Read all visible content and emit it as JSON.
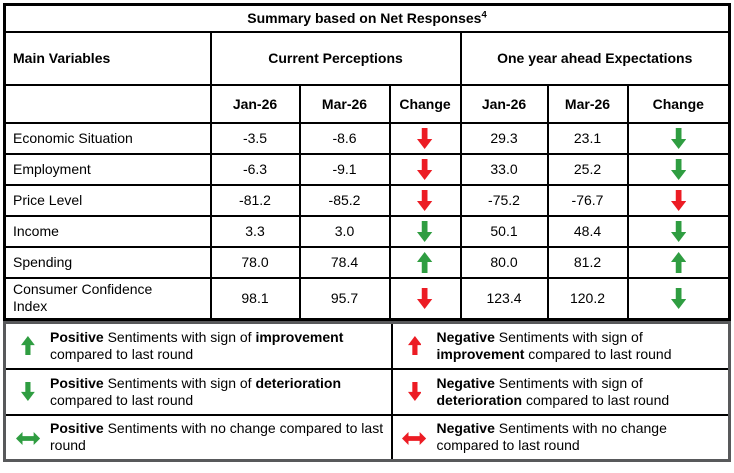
{
  "title": {
    "text": "Summary based on Net Responses",
    "superscript": "4"
  },
  "header": {
    "main_variables": "Main Variables",
    "current_perceptions": "Current Perceptions",
    "one_year_ahead": "One year ahead Expectations",
    "subcolumns": [
      "Jan-26",
      "Mar-26",
      "Change",
      "Jan-26",
      "Mar-26",
      "Change"
    ]
  },
  "rows": [
    {
      "label": "Economic Situation",
      "cp": {
        "jan": "-3.5",
        "mar": "-8.6",
        "change": "red-down"
      },
      "exp": {
        "jan": "29.3",
        "mar": "23.1",
        "change": "green-down"
      }
    },
    {
      "label": "Employment",
      "cp": {
        "jan": "-6.3",
        "mar": "-9.1",
        "change": "red-down"
      },
      "exp": {
        "jan": "33.0",
        "mar": "25.2",
        "change": "green-down"
      }
    },
    {
      "label": "Price Level",
      "cp": {
        "jan": "-81.2",
        "mar": "-85.2",
        "change": "red-down"
      },
      "exp": {
        "jan": "-75.2",
        "mar": "-76.7",
        "change": "red-down"
      }
    },
    {
      "label": "Income",
      "cp": {
        "jan": "3.3",
        "mar": "3.0",
        "change": "green-down"
      },
      "exp": {
        "jan": "50.1",
        "mar": "48.4",
        "change": "green-down"
      }
    },
    {
      "label": "Spending",
      "cp": {
        "jan": "78.0",
        "mar": "78.4",
        "change": "green-up"
      },
      "exp": {
        "jan": "80.0",
        "mar": "81.2",
        "change": "green-up"
      }
    },
    {
      "label": "Consumer Confidence Index",
      "cp": {
        "jan": "98.1",
        "mar": "95.7",
        "change": "red-down"
      },
      "exp": {
        "jan": "123.4",
        "mar": "120.2",
        "change": "green-down"
      }
    }
  ],
  "legend": [
    {
      "arrow": "green-up",
      "segments": [
        {
          "t": "Positive",
          "b": true
        },
        {
          "t": " Sentiments with sign of ",
          "b": false
        },
        {
          "t": "improvement",
          "b": true
        },
        {
          "t": " compared to last round",
          "b": false
        }
      ]
    },
    {
      "arrow": "red-up",
      "segments": [
        {
          "t": "Negative",
          "b": true
        },
        {
          "t": " Sentiments with sign of ",
          "b": false
        },
        {
          "t": "improvement",
          "b": true
        },
        {
          "t": " compared to last round",
          "b": false
        }
      ]
    },
    {
      "arrow": "green-down",
      "segments": [
        {
          "t": "Positive",
          "b": true
        },
        {
          "t": " Sentiments with sign of ",
          "b": false
        },
        {
          "t": "deterioration",
          "b": true
        },
        {
          "t": " compared to last round",
          "b": false
        }
      ]
    },
    {
      "arrow": "red-down",
      "segments": [
        {
          "t": "Negative",
          "b": true
        },
        {
          "t": " Sentiments with sign of ",
          "b": false
        },
        {
          "t": "deterioration",
          "b": true
        },
        {
          "t": " compared to last round",
          "b": false
        }
      ]
    },
    {
      "arrow": "green-leftright",
      "segments": [
        {
          "t": "Positive",
          "b": true
        },
        {
          "t": " Sentiments with no change compared to last round",
          "b": false
        }
      ]
    },
    {
      "arrow": "red-leftright",
      "segments": [
        {
          "t": "Negative",
          "b": true
        },
        {
          "t": " Sentiments with no change compared to last round",
          "b": false
        }
      ]
    }
  ],
  "colors": {
    "green": "#2f9d41",
    "red": "#ec1c24",
    "grid": "#000000",
    "legend_border": "#58595b"
  }
}
